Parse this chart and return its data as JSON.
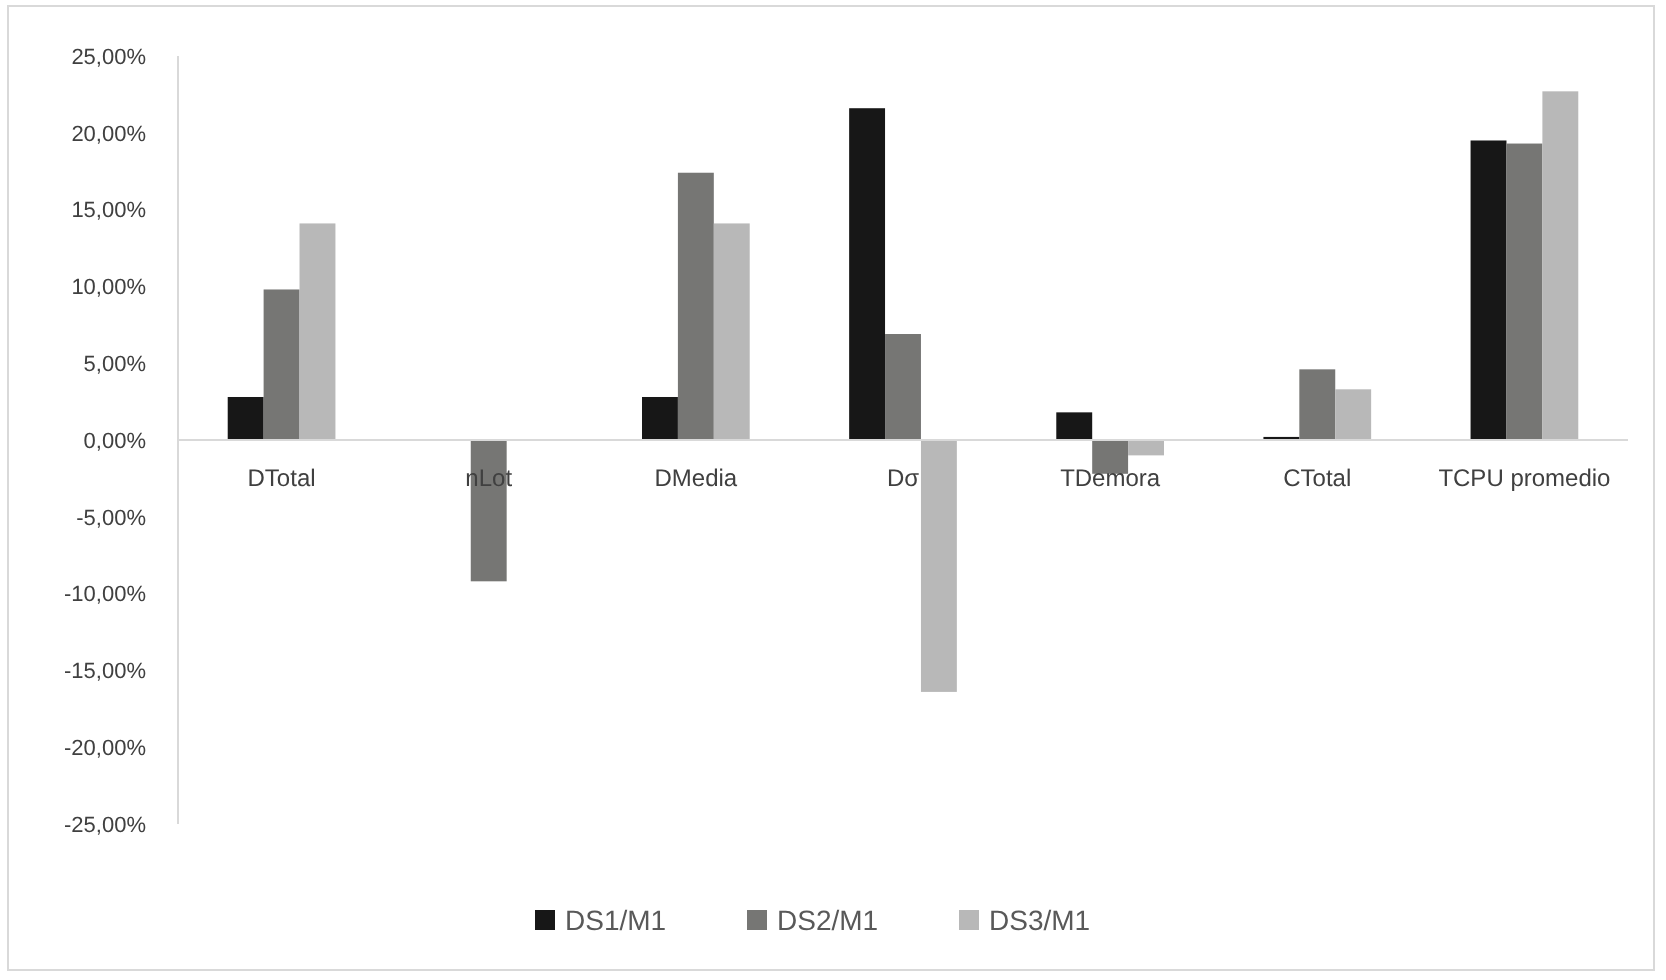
{
  "chart_data": {
    "type": "bar",
    "categories": [
      "DTotal",
      "nLot",
      "DMedia",
      "Dσ",
      "TDemora",
      "CTotal",
      "TCPU promedio"
    ],
    "series": [
      {
        "name": "DS1/M1",
        "color": "#171717",
        "values": [
          2.8,
          0,
          2.8,
          21.6,
          1.8,
          0.2,
          19.5
        ]
      },
      {
        "name": "DS2/M1",
        "color": "#767674",
        "values": [
          9.8,
          -9.2,
          17.4,
          6.9,
          -2.2,
          4.6,
          19.3
        ]
      },
      {
        "name": "DS3/M1",
        "color": "#b8b8b8",
        "values": [
          14.1,
          0,
          14.1,
          -16.4,
          -1.0,
          3.3,
          22.7
        ]
      }
    ],
    "ylim": [
      -25,
      25
    ],
    "yticks": [
      {
        "value": -25,
        "label": "-25,00%"
      },
      {
        "value": -20,
        "label": "-20,00%"
      },
      {
        "value": -15,
        "label": "-15,00%"
      },
      {
        "value": -10,
        "label": "-10,00%"
      },
      {
        "value": -5,
        "label": "-5,00%"
      },
      {
        "value": 0,
        "label": "0,00%"
      },
      {
        "value": 5,
        "label": "5,00%"
      },
      {
        "value": 10,
        "label": "10,00%"
      },
      {
        "value": 15,
        "label": "15,00%"
      },
      {
        "value": 20,
        "label": "20,00%"
      },
      {
        "value": 25,
        "label": "25,00%"
      }
    ],
    "grid": false,
    "legend": "bottom"
  }
}
